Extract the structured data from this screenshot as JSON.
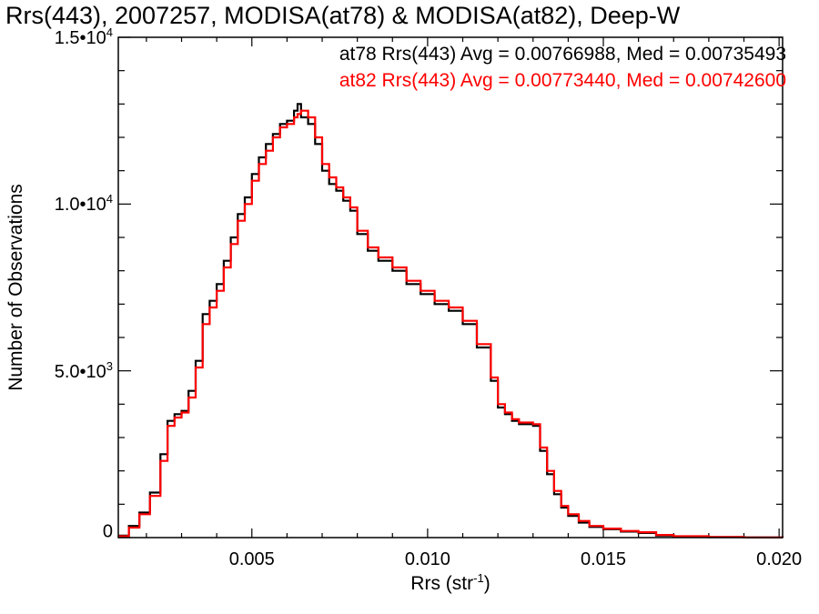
{
  "chart_data": {
    "type": "line",
    "title": "Rrs(443), 2007257, MODISA(at78) & MODISA(at82), Deep-W",
    "xlabel_main": "Rrs (str",
    "xlabel_sup": "-1",
    "xlabel_close": ")",
    "ylabel": "Number of Observations",
    "xlim": [
      0.0012,
      0.0201
    ],
    "ylim": [
      0,
      15000
    ],
    "xticks": [
      {
        "value": 0.005,
        "label": "0.005"
      },
      {
        "value": 0.01,
        "label": "0.010"
      },
      {
        "value": 0.015,
        "label": "0.015"
      },
      {
        "value": 0.02,
        "label": "0.020"
      }
    ],
    "yticks": [
      {
        "value": 0,
        "base": "0",
        "exp": ""
      },
      {
        "value": 5000,
        "base": "5.0•10",
        "exp": "3"
      },
      {
        "value": 10000,
        "base": "1.0•10",
        "exp": "4"
      },
      {
        "value": 15000,
        "base": "1.5•10",
        "exp": "4"
      }
    ],
    "legend": [
      {
        "text": "at78 Rrs(443) Avg = 0.00766988, Med = 0.00735493",
        "color": "#000000"
      },
      {
        "text": "at82 Rrs(443) Avg = 0.00773440, Med = 0.00742600",
        "color": "#ff0000"
      }
    ],
    "series": [
      {
        "color": "#000000",
        "x": [
          0.0012,
          0.0015,
          0.0018,
          0.0021,
          0.0024,
          0.0026,
          0.0028,
          0.003,
          0.0032,
          0.0034,
          0.0036,
          0.0038,
          0.004,
          0.0042,
          0.0044,
          0.0046,
          0.0048,
          0.005,
          0.0052,
          0.0054,
          0.0056,
          0.0058,
          0.006,
          0.0062,
          0.0063,
          0.0064,
          0.0066,
          0.0068,
          0.007,
          0.0072,
          0.0074,
          0.0076,
          0.0078,
          0.008,
          0.0083,
          0.0086,
          0.009,
          0.0094,
          0.0098,
          0.0102,
          0.0106,
          0.011,
          0.0114,
          0.0118,
          0.012,
          0.0122,
          0.0124,
          0.0126,
          0.0128,
          0.013,
          0.0132,
          0.0134,
          0.0136,
          0.0138,
          0.014,
          0.0143,
          0.0146,
          0.015,
          0.0155,
          0.016,
          0.0165,
          0.017,
          0.018,
          0.019,
          0.0201
        ],
        "y": [
          60,
          350,
          750,
          1350,
          2500,
          3500,
          3700,
          3800,
          4400,
          5300,
          6700,
          7100,
          7600,
          8300,
          9000,
          9700,
          10200,
          10900,
          11400,
          11800,
          12100,
          12400,
          12500,
          12800,
          13000,
          12600,
          12400,
          11800,
          11000,
          10600,
          10400,
          10100,
          9800,
          9100,
          8600,
          8300,
          8000,
          7600,
          7300,
          7000,
          6800,
          6400,
          5700,
          4700,
          3900,
          3700,
          3500,
          3400,
          3400,
          3350,
          2600,
          1900,
          1300,
          900,
          650,
          450,
          320,
          250,
          180,
          140,
          60,
          30,
          15,
          5,
          0
        ]
      },
      {
        "color": "#ff0000",
        "x": [
          0.0012,
          0.0015,
          0.0018,
          0.0021,
          0.0024,
          0.0026,
          0.0028,
          0.003,
          0.0032,
          0.0034,
          0.0036,
          0.0038,
          0.004,
          0.0042,
          0.0044,
          0.0046,
          0.0048,
          0.005,
          0.0052,
          0.0054,
          0.0056,
          0.0058,
          0.006,
          0.0062,
          0.0063,
          0.0064,
          0.0066,
          0.0068,
          0.007,
          0.0072,
          0.0074,
          0.0076,
          0.0078,
          0.008,
          0.0083,
          0.0086,
          0.009,
          0.0094,
          0.0098,
          0.0102,
          0.0106,
          0.011,
          0.0114,
          0.0118,
          0.012,
          0.0122,
          0.0124,
          0.0126,
          0.0128,
          0.013,
          0.0132,
          0.0134,
          0.0136,
          0.0138,
          0.014,
          0.0143,
          0.0146,
          0.015,
          0.0155,
          0.016,
          0.0165,
          0.017,
          0.018,
          0.019,
          0.0201
        ],
        "y": [
          40,
          300,
          700,
          1250,
          2300,
          3350,
          3600,
          3750,
          4200,
          5100,
          6400,
          6900,
          7400,
          8100,
          8800,
          9500,
          10000,
          10700,
          11200,
          11600,
          12000,
          12300,
          12400,
          12600,
          12700,
          12800,
          12600,
          12000,
          11200,
          10800,
          10500,
          10200,
          9900,
          9200,
          8700,
          8400,
          8100,
          7700,
          7400,
          7100,
          6900,
          6500,
          5800,
          4800,
          4000,
          3750,
          3550,
          3450,
          3450,
          3400,
          2700,
          2000,
          1400,
          950,
          700,
          500,
          350,
          270,
          200,
          160,
          80,
          40,
          20,
          5,
          0
        ]
      }
    ]
  }
}
